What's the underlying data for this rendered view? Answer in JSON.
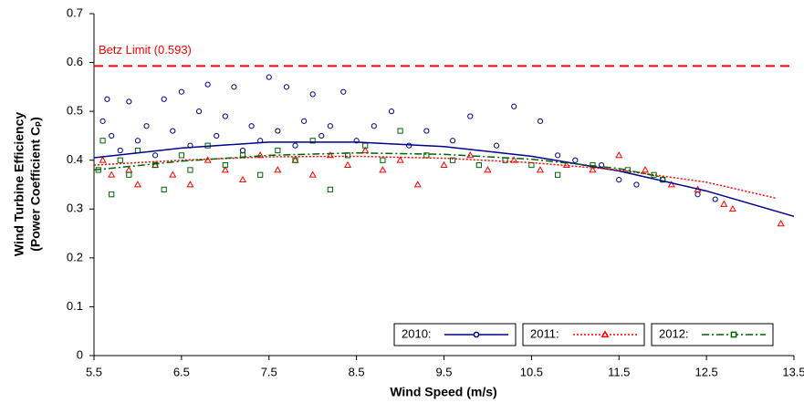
{
  "chart_data": {
    "type": "scatter",
    "xlabel": "Wind Speed (m/s)",
    "ylabel": [
      "Wind Turbine Efficiency",
      "(Power Coefficient Cₚ)"
    ],
    "xlim": [
      5.5,
      13.5
    ],
    "xticks": [
      5.5,
      6.5,
      7.5,
      8.5,
      9.5,
      10.5,
      11.5,
      12.5,
      13.5
    ],
    "ylim": [
      0,
      0.7
    ],
    "yticks": [
      0,
      0.1,
      0.2,
      0.3,
      0.4,
      0.5,
      0.6,
      0.7
    ],
    "reference_lines": [
      {
        "value": 0.593,
        "label": "Betz Limit (0.593)",
        "color": "#ff0000"
      }
    ],
    "series": [
      {
        "name": "2010:",
        "color": "#00008b",
        "marker": "circle",
        "line_dash": "none",
        "x": [
          5.6,
          5.65,
          5.7,
          5.8,
          5.9,
          6.0,
          6.1,
          6.2,
          6.3,
          6.4,
          6.5,
          6.6,
          6.7,
          6.8,
          6.9,
          7.0,
          7.1,
          7.2,
          7.3,
          7.4,
          7.5,
          7.6,
          7.7,
          7.8,
          7.9,
          8.0,
          8.1,
          8.2,
          8.35,
          8.5,
          8.7,
          8.9,
          9.1,
          9.3,
          9.6,
          9.8,
          10.1,
          10.3,
          10.6,
          10.8,
          11.0,
          11.3,
          11.5,
          11.7,
          12.0,
          12.4,
          12.6
        ],
        "values": [
          0.48,
          0.525,
          0.45,
          0.42,
          0.52,
          0.44,
          0.47,
          0.41,
          0.525,
          0.46,
          0.54,
          0.43,
          0.5,
          0.555,
          0.45,
          0.49,
          0.55,
          0.42,
          0.47,
          0.44,
          0.57,
          0.46,
          0.55,
          0.43,
          0.48,
          0.535,
          0.45,
          0.47,
          0.54,
          0.44,
          0.47,
          0.5,
          0.43,
          0.46,
          0.44,
          0.49,
          0.43,
          0.51,
          0.48,
          0.41,
          0.4,
          0.39,
          0.36,
          0.35,
          0.36,
          0.33,
          0.32
        ],
        "trend_x": [
          5.5,
          6.5,
          7.5,
          8.5,
          9.5,
          10.5,
          11.5,
          12.5,
          13.5
        ],
        "trend_values": [
          0.405,
          0.425,
          0.437,
          0.437,
          0.428,
          0.408,
          0.378,
          0.337,
          0.285
        ]
      },
      {
        "name": "2011:",
        "color": "#ff0000",
        "marker": "triangle",
        "line_dash": "2 2",
        "x": [
          5.6,
          5.7,
          5.9,
          6.0,
          6.2,
          6.4,
          6.6,
          6.8,
          7.0,
          7.2,
          7.4,
          7.6,
          7.8,
          8.0,
          8.2,
          8.4,
          8.6,
          8.8,
          9.0,
          9.2,
          9.5,
          9.8,
          10.0,
          10.3,
          10.6,
          10.9,
          11.2,
          11.5,
          11.8,
          12.1,
          12.4,
          12.7,
          12.8,
          13.35
        ],
        "values": [
          0.4,
          0.37,
          0.38,
          0.35,
          0.39,
          0.37,
          0.35,
          0.4,
          0.38,
          0.36,
          0.41,
          0.38,
          0.4,
          0.37,
          0.41,
          0.39,
          0.42,
          0.38,
          0.4,
          0.35,
          0.39,
          0.41,
          0.38,
          0.4,
          0.38,
          0.39,
          0.38,
          0.41,
          0.38,
          0.35,
          0.34,
          0.31,
          0.3,
          0.27
        ],
        "trend_x": [
          5.5,
          6.5,
          7.5,
          8.5,
          9.5,
          10.5,
          11.5,
          12.5,
          13.3
        ],
        "trend_values": [
          0.39,
          0.4,
          0.407,
          0.408,
          0.404,
          0.395,
          0.38,
          0.355,
          0.322
        ]
      },
      {
        "name": "2012:",
        "color": "#006400",
        "marker": "square",
        "line_dash": "8 3 2 3",
        "x": [
          5.55,
          5.6,
          5.7,
          5.8,
          5.9,
          6.0,
          6.2,
          6.3,
          6.5,
          6.6,
          6.8,
          7.0,
          7.2,
          7.4,
          7.6,
          7.8,
          8.0,
          8.2,
          8.4,
          8.6,
          8.8,
          9.0,
          9.3,
          9.6,
          9.9,
          10.2,
          10.5,
          10.8,
          11.2,
          11.6,
          11.9,
          12.0
        ],
        "values": [
          0.38,
          0.44,
          0.33,
          0.4,
          0.37,
          0.42,
          0.39,
          0.34,
          0.41,
          0.38,
          0.43,
          0.39,
          0.41,
          0.37,
          0.42,
          0.4,
          0.44,
          0.34,
          0.41,
          0.43,
          0.4,
          0.46,
          0.41,
          0.4,
          0.39,
          0.4,
          0.39,
          0.37,
          0.39,
          0.38,
          0.37,
          0.36
        ],
        "trend_x": [
          5.5,
          6.5,
          7.5,
          8.5,
          9.5,
          10.5,
          11.5,
          12.0
        ],
        "trend_values": [
          0.38,
          0.398,
          0.41,
          0.415,
          0.412,
          0.402,
          0.383,
          0.365
        ]
      }
    ]
  }
}
